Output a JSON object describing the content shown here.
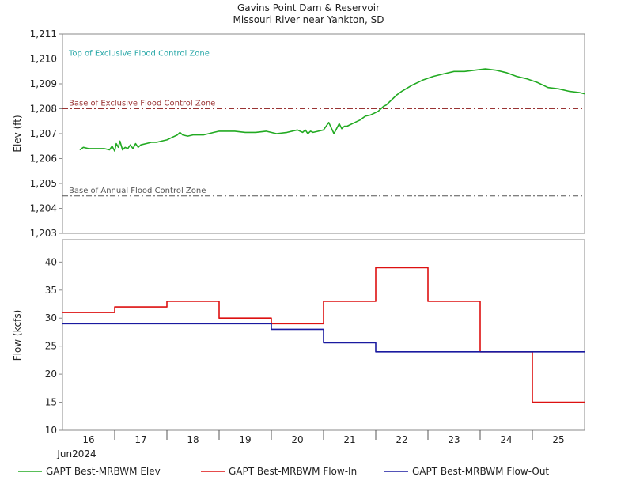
{
  "title_line1": "Gavins Point Dam & Reservoir",
  "title_line2": "Missouri River near Yankton, SD",
  "colors": {
    "elev": "#22aa22",
    "flow_in": "#dd1111",
    "flow_out": "#1a1aa0",
    "top_excl": "#2aa8a8",
    "base_excl": "#993333",
    "base_annual": "#555555"
  },
  "x_axis": {
    "day_labels": [
      "16",
      "17",
      "18",
      "19",
      "20",
      "21",
      "22",
      "23",
      "24",
      "25"
    ],
    "month_label": "Jun2024",
    "range": [
      15.5,
      25.5
    ]
  },
  "legend": [
    {
      "key": "elev",
      "label": "GAPT Best-MRBWM Elev"
    },
    {
      "key": "flow_in",
      "label": "GAPT Best-MRBWM Flow-In"
    },
    {
      "key": "flow_out",
      "label": "GAPT Best-MRBWM Flow-Out"
    }
  ],
  "chart_data": [
    {
      "type": "line",
      "ylabel": "Elev (ft)",
      "ylim": [
        1203,
        1211
      ],
      "ytick_labels": [
        "1,203",
        "1,204",
        "1,205",
        "1,206",
        "1,207",
        "1,208",
        "1,209",
        "1,210",
        "1,211"
      ],
      "reference_lines": [
        {
          "key": "top_excl",
          "label": "Top of Exclusive Flood Control Zone",
          "value": 1210.0
        },
        {
          "key": "base_excl",
          "label": "Base of Exclusive Flood Control Zone",
          "value": 1208.0
        },
        {
          "key": "base_annual",
          "label": "Base of Annual Flood Control Zone",
          "value": 1204.5
        }
      ],
      "series": [
        {
          "name": "GAPT Best-MRBWM Elev",
          "key": "elev",
          "x": [
            15.83,
            15.9,
            16.0,
            16.1,
            16.2,
            16.3,
            16.4,
            16.45,
            16.5,
            16.53,
            16.57,
            16.6,
            16.65,
            16.7,
            16.75,
            16.8,
            16.85,
            16.9,
            16.95,
            17.0,
            17.1,
            17.2,
            17.3,
            17.4,
            17.5,
            17.6,
            17.7,
            17.75,
            17.8,
            17.9,
            18.0,
            18.1,
            18.2,
            18.3,
            18.4,
            18.5,
            18.6,
            18.7,
            18.8,
            19.0,
            19.2,
            19.4,
            19.6,
            19.8,
            20.0,
            20.1,
            20.15,
            20.2,
            20.25,
            20.3,
            20.4,
            20.5,
            20.6,
            20.7,
            20.8,
            20.85,
            20.9,
            20.95,
            21.0,
            21.1,
            21.2,
            21.3,
            21.4,
            21.5,
            21.55,
            21.6,
            21.65,
            21.7,
            21.8,
            21.9,
            22.0,
            22.2,
            22.4,
            22.6,
            22.8,
            23.0,
            23.2,
            23.4,
            23.6,
            23.8,
            24.0,
            24.2,
            24.4,
            24.6,
            24.8,
            25.0,
            25.2,
            25.4,
            25.5
          ],
          "y": [
            1206.35,
            1206.45,
            1206.4,
            1206.4,
            1206.4,
            1206.4,
            1206.35,
            1206.5,
            1206.3,
            1206.6,
            1206.45,
            1206.7,
            1206.35,
            1206.45,
            1206.4,
            1206.55,
            1206.4,
            1206.6,
            1206.45,
            1206.55,
            1206.6,
            1206.65,
            1206.65,
            1206.7,
            1206.75,
            1206.85,
            1206.95,
            1207.05,
            1206.95,
            1206.9,
            1206.95,
            1206.95,
            1206.95,
            1207.0,
            1207.05,
            1207.1,
            1207.1,
            1207.1,
            1207.1,
            1207.05,
            1207.05,
            1207.1,
            1207.0,
            1207.05,
            1207.15,
            1207.05,
            1207.15,
            1207.0,
            1207.1,
            1207.05,
            1207.1,
            1207.15,
            1207.45,
            1207.0,
            1207.4,
            1207.2,
            1207.3,
            1207.3,
            1207.35,
            1207.45,
            1207.55,
            1207.7,
            1207.75,
            1207.85,
            1207.9,
            1208.0,
            1208.1,
            1208.15,
            1208.35,
            1208.55,
            1208.7,
            1208.95,
            1209.15,
            1209.3,
            1209.4,
            1209.5,
            1209.5,
            1209.55,
            1209.6,
            1209.55,
            1209.45,
            1209.3,
            1209.2,
            1209.05,
            1208.85,
            1208.8,
            1208.7,
            1208.65,
            1208.6
          ]
        }
      ]
    },
    {
      "type": "line",
      "step": true,
      "ylabel": "Flow (kcfs)",
      "ylim": [
        10,
        44
      ],
      "ytick_labels": [
        "10",
        "15",
        "20",
        "25",
        "30",
        "35",
        "40"
      ],
      "series": [
        {
          "name": "GAPT Best-MRBWM Flow-In",
          "key": "flow_in",
          "x": [
            15.5,
            16.5,
            16.5,
            17.5,
            17.5,
            18.5,
            18.5,
            19.5,
            19.5,
            20.5,
            20.5,
            21.5,
            21.5,
            22.5,
            22.5,
            23.5,
            23.5,
            24.5,
            24.5,
            25.5
          ],
          "y": [
            31,
            31,
            32,
            32,
            33,
            33,
            30,
            30,
            29,
            29,
            33,
            33,
            39,
            39,
            33,
            33,
            24,
            24,
            15,
            15
          ]
        },
        {
          "name": "GAPT Best-MRBWM Flow-Out",
          "key": "flow_out",
          "x": [
            15.5,
            19.5,
            19.5,
            20.5,
            20.5,
            21.5,
            21.5,
            25.5
          ],
          "y": [
            29,
            29,
            28,
            28,
            25.6,
            25.6,
            24,
            24
          ]
        }
      ]
    }
  ]
}
